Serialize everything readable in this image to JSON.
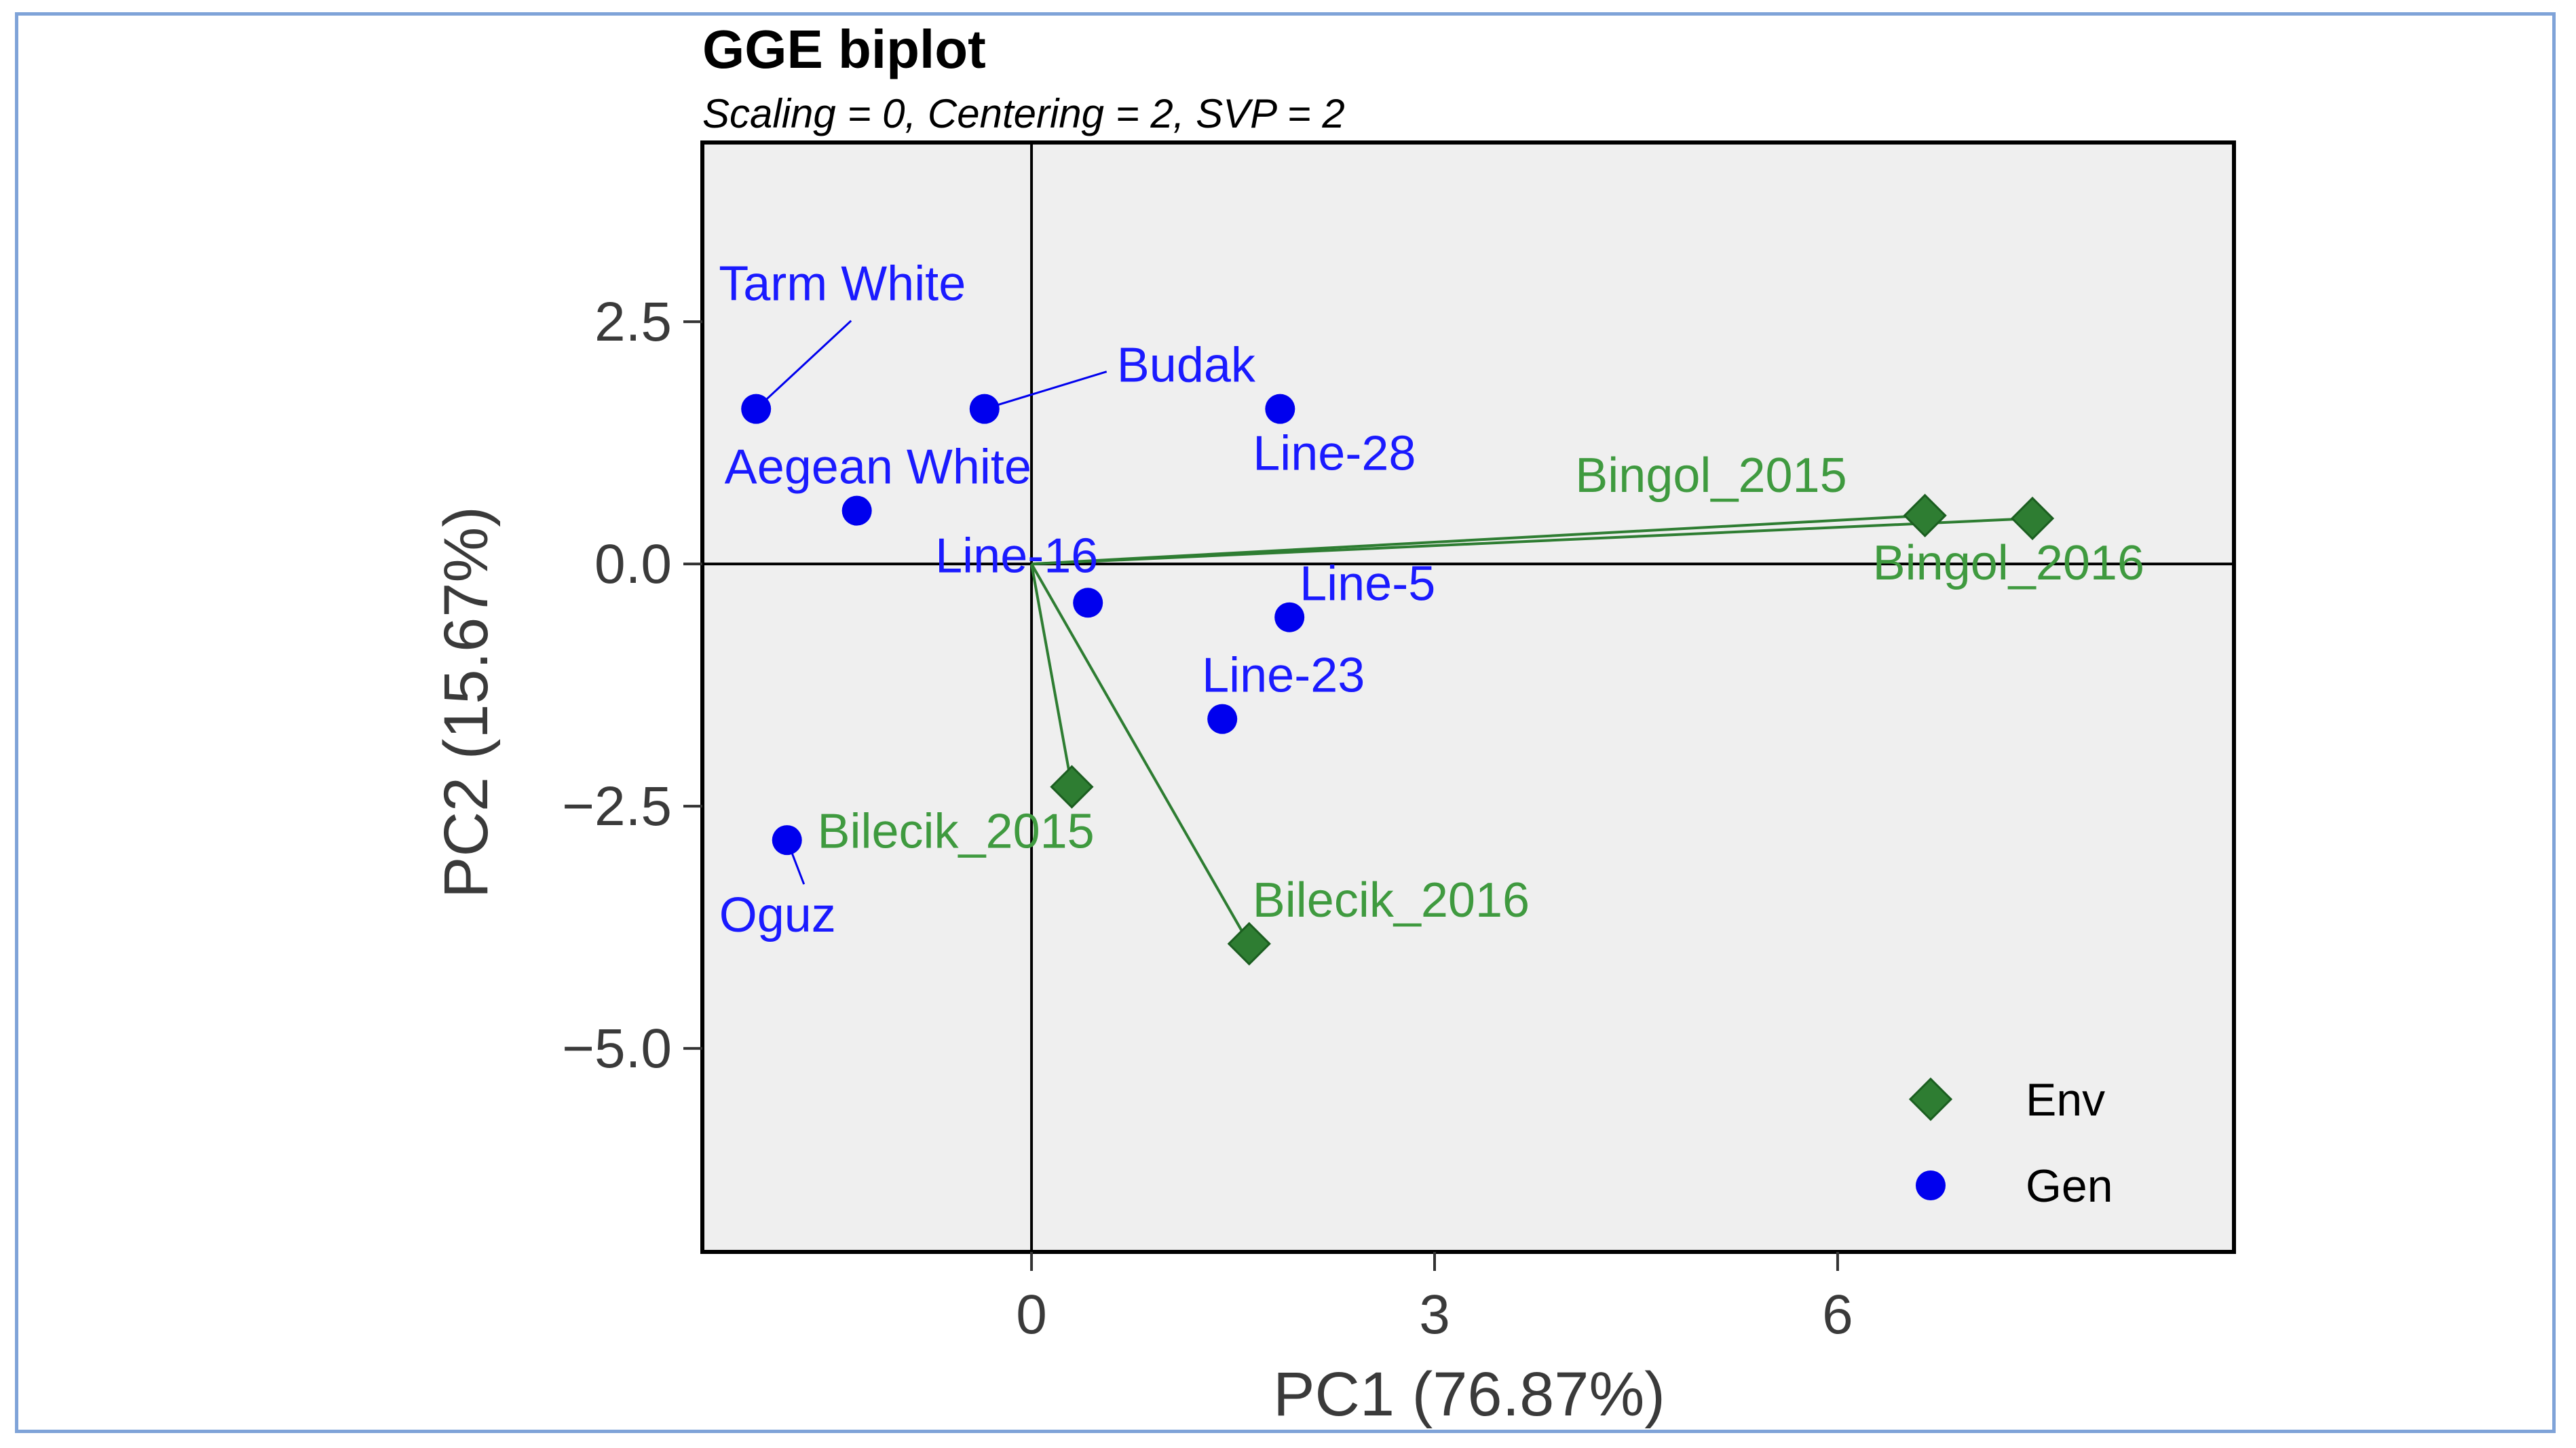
{
  "chart_data": {
    "type": "scatter",
    "title": "GGE biplot",
    "subtitle": "Scaling = 0, Centering = 2, SVP = 2",
    "xlabel": "PC1 (76.87%)",
    "ylabel": "PC2 (15.67%)",
    "xlim": [
      -2.45,
      8.95
    ],
    "ylim": [
      -7.1,
      4.35
    ],
    "x_ticks": [
      0,
      3,
      6
    ],
    "x_tick_labels": [
      "0",
      "3",
      "6"
    ],
    "y_ticks": [
      2.5,
      0.0,
      -2.5,
      -5.0
    ],
    "y_tick_labels": [
      "2.5",
      "0.0",
      "−2.5",
      "−5.0"
    ],
    "grid": false,
    "colors": {
      "genotype": "#0000ee",
      "environment": "#2e7d32",
      "env_label": "#3f9a3f",
      "panel": "#efefef",
      "frame": "#7fa3d8"
    },
    "legend": {
      "position": "bottom-right",
      "items": [
        {
          "label": "Env",
          "marker": "diamond",
          "color": "#2e7d32"
        },
        {
          "label": "Gen",
          "marker": "circle",
          "color": "#0000ee"
        }
      ]
    },
    "genotypes": [
      {
        "name": "Tarm White",
        "x": -2.05,
        "y": 1.6
      },
      {
        "name": "Budak",
        "x": -0.35,
        "y": 1.6
      },
      {
        "name": "Line-28",
        "x": 1.85,
        "y": 1.6
      },
      {
        "name": "Aegean White",
        "x": -1.3,
        "y": 0.55
      },
      {
        "name": "Line-16",
        "x": 0.42,
        "y": -0.4
      },
      {
        "name": "Line-5",
        "x": 1.92,
        "y": -0.55
      },
      {
        "name": "Line-23",
        "x": 1.42,
        "y": -1.6
      },
      {
        "name": "Oguz",
        "x": -1.82,
        "y": -2.85
      }
    ],
    "environments": [
      {
        "name": "Bingol_2015",
        "x": 6.65,
        "y": 0.5
      },
      {
        "name": "Bingol_2016",
        "x": 7.45,
        "y": 0.47
      },
      {
        "name": "Bilecik_2015",
        "x": 0.3,
        "y": -2.3
      },
      {
        "name": "Bilecik_2016",
        "x": 1.62,
        "y": -3.92
      }
    ]
  }
}
